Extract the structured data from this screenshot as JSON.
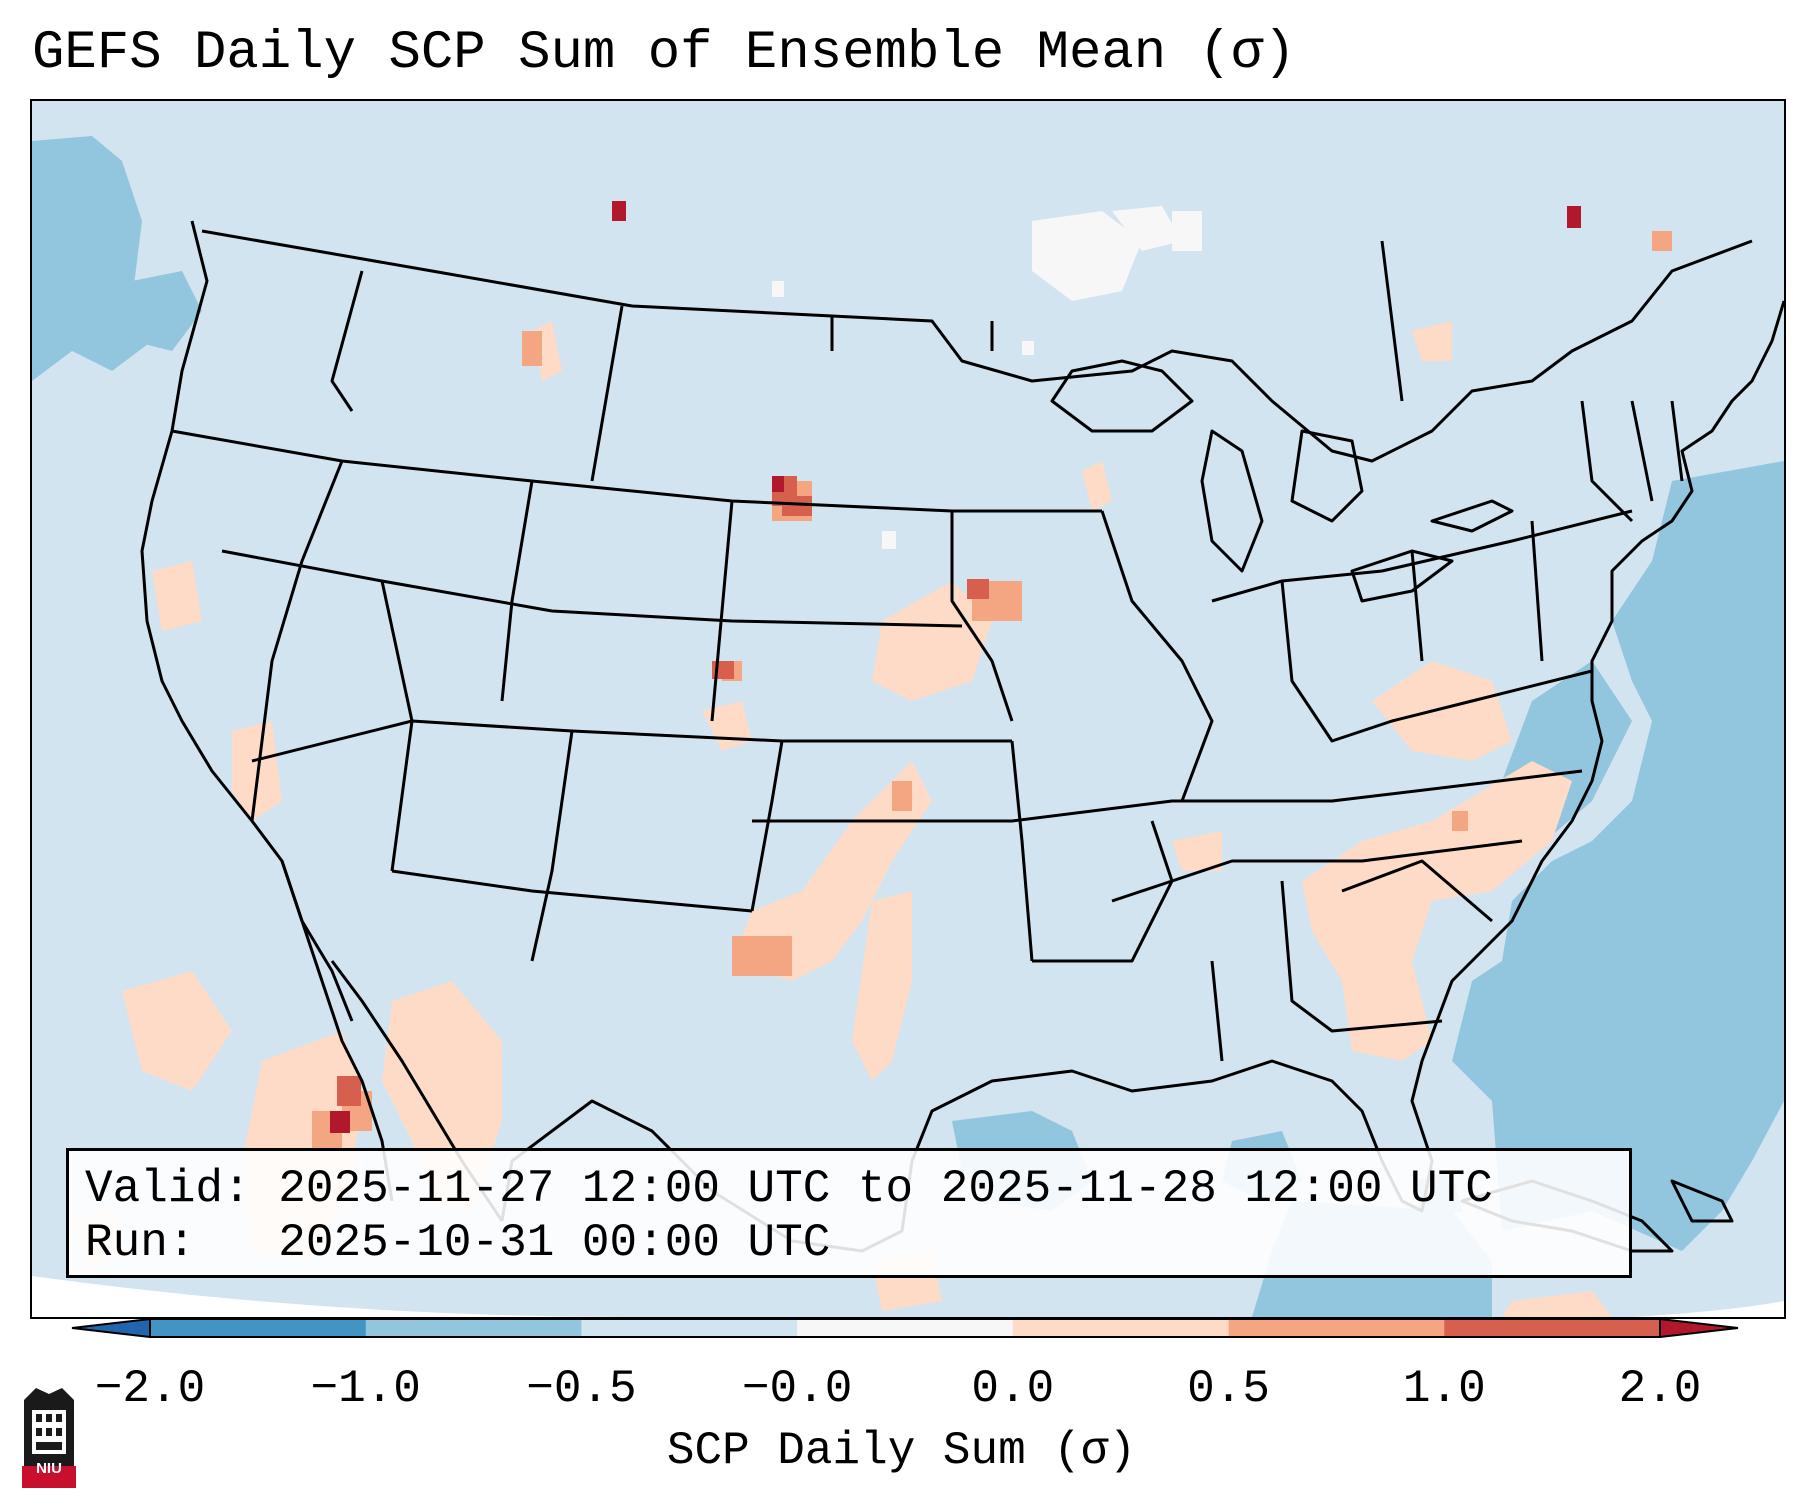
{
  "title": "GEFS Daily SCP Sum of Ensemble Mean (σ)",
  "info": {
    "valid_label": "Valid:",
    "valid_range": "2025-11-27 12:00 UTC to 2025-11-28 12:00 UTC",
    "run_label": "Run:",
    "run_time": "2025-10-31 00:00 UTC"
  },
  "colorbar": {
    "label": "SCP Daily Sum (σ)",
    "ticks": [
      "−2.0",
      "−1.0",
      "−0.5",
      "−0.0",
      "0.0",
      "0.5",
      "1.0",
      "2.0"
    ],
    "bins": [
      {
        "from": -2.0,
        "to": -1.0,
        "color": "#4393c3"
      },
      {
        "from": -1.0,
        "to": -0.5,
        "color": "#92c5de"
      },
      {
        "from": -0.5,
        "to": -0.0,
        "color": "#d1e5f0"
      },
      {
        "from": -0.0,
        "to": 0.0,
        "color": "#f7f7f7"
      },
      {
        "from": 0.0,
        "to": 0.5,
        "color": "#fddbc7"
      },
      {
        "from": 0.5,
        "to": 1.0,
        "color": "#f4a582"
      },
      {
        "from": 1.0,
        "to": 2.0,
        "color": "#d6604d"
      }
    ],
    "extend_low_color": "#2166ac",
    "extend_high_color": "#b2182b"
  },
  "logo": {
    "text": "NIU",
    "color": "#c8102e"
  }
}
